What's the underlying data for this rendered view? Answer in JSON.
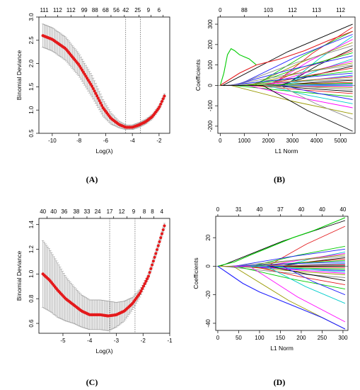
{
  "figure_panels": [
    "(A)",
    "(B)",
    "(C)",
    "(D)"
  ],
  "chart_data": [
    {
      "id": "A",
      "type": "line",
      "variant": "cv-error-bars",
      "xlabel": "Log(λ)",
      "ylabel": "Binomial Deviance",
      "xlim": [
        -11,
        -1.2
      ],
      "ylim": [
        0.5,
        3.0
      ],
      "x_ticks": [
        -10,
        -8,
        -6,
        -4,
        -2
      ],
      "y_ticks": [
        0.5,
        1.0,
        1.5,
        2.0,
        2.5,
        3.0
      ],
      "x_tick_labels": [
        "-10",
        "-8",
        "-6",
        "-4",
        "-2"
      ],
      "y_tick_labels": [
        "0.5",
        "1.0",
        "1.5",
        "2.0",
        "2.5",
        "3.0"
      ],
      "top_ticks": [
        -10.5,
        -9.6,
        -8.6,
        -7.6,
        -6.6,
        -5.6,
        -4.6,
        -3.5,
        -2.6,
        -1.7
      ],
      "top_tick_labels": [
        "111",
        "112",
        "112",
        "99",
        "88",
        "68",
        "56",
        "42",
        "25",
        "9",
        "6"
      ],
      "top_label_x": [
        -10.6,
        -9.6,
        -8.6,
        -7.6,
        -6.8,
        -6.0,
        -5.2,
        -4.5,
        -3.6,
        -2.8,
        -2.0
      ],
      "vlines": [
        -4.5,
        -3.4
      ],
      "curve_x": [
        -10.7,
        -10.0,
        -9.0,
        -8.0,
        -7.0,
        -6.2,
        -5.6,
        -5.0,
        -4.5,
        -4.0,
        -3.5,
        -3.0,
        -2.5,
        -2.0,
        -1.6
      ],
      "curve_y": [
        2.6,
        2.52,
        2.32,
        1.97,
        1.5,
        1.05,
        0.82,
        0.69,
        0.63,
        0.63,
        0.68,
        0.75,
        0.86,
        1.05,
        1.3
      ],
      "error": [
        0.25,
        0.25,
        0.25,
        0.24,
        0.23,
        0.18,
        0.12,
        0.07,
        0.05,
        0.05,
        0.05,
        0.05,
        0.05,
        0.05,
        0.05
      ],
      "point_color": "#e41a1c",
      "bar_color": "#9a9a9a"
    },
    {
      "id": "B",
      "type": "line",
      "variant": "coefficient-paths",
      "xlabel": "L1 Norm",
      "ylabel": "Coefficients",
      "xlim": [
        -100,
        5600
      ],
      "ylim": [
        -235,
        335
      ],
      "x_ticks": [
        0,
        1000,
        2000,
        3000,
        4000,
        5000
      ],
      "y_ticks": [
        -200,
        -100,
        0,
        100,
        200,
        300
      ],
      "x_tick_labels": [
        "0",
        "1000",
        "2000",
        "3000",
        "4000",
        "5000"
      ],
      "y_tick_labels": [
        "-200",
        "-100",
        "0",
        "100",
        "200",
        "300"
      ],
      "top_ticks": [
        0,
        1000,
        2000,
        3000,
        4000,
        5000
      ],
      "top_tick_labels": [
        "0",
        "88",
        "103",
        "112",
        "113",
        "112"
      ],
      "top_label_x": [
        0,
        1000,
        2000,
        3000,
        4000,
        5000
      ],
      "x_max": 5500,
      "end_values": [
        300,
        285,
        265,
        250,
        240,
        225,
        210,
        195,
        180,
        170,
        160,
        145,
        130,
        120,
        110,
        100,
        95,
        85,
        70,
        60,
        50,
        45,
        40,
        30,
        25,
        15,
        10,
        5,
        0,
        -5,
        -10,
        -20,
        -30,
        -40,
        -55,
        -70,
        -90,
        -110,
        -140,
        -165,
        -225
      ],
      "special_paths": [
        {
          "color": "#00cc00",
          "x": [
            0,
            150,
            300,
            450,
            600,
            800,
            1000,
            1200,
            1500
          ],
          "y": [
            0,
            60,
            150,
            180,
            170,
            150,
            140,
            130,
            100
          ]
        },
        {
          "color": "#e31a1c",
          "x": [
            0,
            800,
            1500,
            2500,
            3500,
            4500,
            5500
          ],
          "y": [
            0,
            60,
            100,
            130,
            170,
            220,
            265
          ]
        }
      ],
      "palette": [
        "#000000",
        "#e31a1c",
        "#00cc00",
        "#1f1fff",
        "#00cccc",
        "#ff00ff",
        "#999900",
        "#888888"
      ]
    },
    {
      "id": "C",
      "type": "line",
      "variant": "cv-error-bars",
      "xlabel": "Log(λ)",
      "ylabel": "Binomial Deviance",
      "xlim": [
        -5.9,
        -1.0
      ],
      "ylim": [
        0.52,
        1.45
      ],
      "x_ticks": [
        -5,
        -4,
        -3,
        -2,
        -1
      ],
      "y_ticks": [
        0.6,
        0.8,
        1.0,
        1.2,
        1.4
      ],
      "x_tick_labels": [
        "-5",
        "-4",
        "-3",
        "-2",
        "-1"
      ],
      "y_tick_labels": [
        "0.6",
        "0.8",
        "1.0",
        "1.2",
        "1.4"
      ],
      "top_ticks": [
        -5.6,
        -5.1,
        -4.6,
        -4.1,
        -3.6,
        -3.1,
        -2.6,
        -2.1,
        -1.6
      ],
      "top_tick_labels": [
        "40",
        "40",
        "36",
        "38",
        "33",
        "24",
        "17",
        "12",
        "9",
        "8",
        "8",
        "4"
      ],
      "top_label_x": [
        -5.75,
        -5.35,
        -4.95,
        -4.5,
        -4.1,
        -3.7,
        -3.25,
        -2.8,
        -2.35,
        -1.95,
        -1.65,
        -1.3
      ],
      "vlines": [
        -3.25,
        -2.3
      ],
      "curve_x": [
        -5.75,
        -5.5,
        -5.2,
        -4.9,
        -4.6,
        -4.3,
        -4.0,
        -3.6,
        -3.3,
        -3.0,
        -2.7,
        -2.4,
        -2.1,
        -1.8,
        -1.5,
        -1.2
      ],
      "curve_y": [
        1.0,
        0.95,
        0.87,
        0.8,
        0.75,
        0.7,
        0.67,
        0.67,
        0.66,
        0.67,
        0.7,
        0.76,
        0.85,
        0.98,
        1.18,
        1.39
      ],
      "error": [
        0.27,
        0.25,
        0.22,
        0.18,
        0.15,
        0.13,
        0.12,
        0.12,
        0.12,
        0.1,
        0.08,
        0.05,
        0.03,
        0.02,
        0.02,
        0.02
      ],
      "point_color": "#e41a1c",
      "bar_color": "#9a9a9a"
    },
    {
      "id": "D",
      "type": "line",
      "variant": "coefficient-paths",
      "xlabel": "L1 Norm",
      "ylabel": "Coefficients",
      "xlim": [
        -5,
        312
      ],
      "ylim": [
        -45,
        35
      ],
      "x_ticks": [
        0,
        50,
        100,
        150,
        200,
        250,
        300
      ],
      "y_ticks": [
        -40,
        -20,
        0,
        20
      ],
      "x_tick_labels": [
        "0",
        "50",
        "100",
        "150",
        "200",
        "250",
        "300"
      ],
      "y_tick_labels": [
        "-40",
        "-20",
        "0",
        "20"
      ],
      "top_ticks": [
        0,
        50,
        100,
        150,
        200,
        250,
        300
      ],
      "top_tick_labels": [
        "0",
        "31",
        "40",
        "37",
        "40",
        "40",
        "40"
      ],
      "top_label_x": [
        0,
        50,
        100,
        150,
        200,
        250,
        300
      ],
      "x_max": 305,
      "end_values": [
        32,
        28,
        14,
        12,
        10,
        9,
        8,
        7,
        6,
        5,
        4,
        3,
        2,
        1.5,
        1,
        0.5,
        0,
        -1,
        -2,
        -3,
        -4,
        -5,
        -6,
        -8,
        -10,
        -13,
        -16,
        -20,
        -26,
        -39,
        -44
      ],
      "special_paths": [
        {
          "color": "#00cc00",
          "x": [
            0,
            40,
            80,
            130,
            180,
            230,
            305
          ],
          "y": [
            0,
            3,
            8,
            14,
            20,
            25,
            34
          ]
        },
        {
          "color": "#1f1fff",
          "x": [
            0,
            30,
            60,
            100,
            150,
            200,
            250,
            305
          ],
          "y": [
            0,
            -6,
            -12,
            -18,
            -24,
            -30,
            -36,
            -44
          ]
        }
      ],
      "palette": [
        "#000000",
        "#e31a1c",
        "#00cc00",
        "#1f1fff",
        "#00cccc",
        "#ff00ff",
        "#999900",
        "#888888"
      ]
    }
  ]
}
